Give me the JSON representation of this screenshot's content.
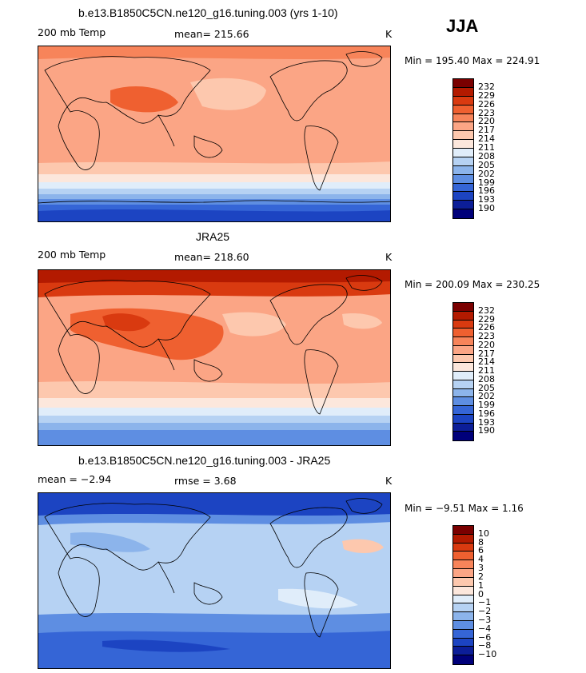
{
  "season": "JJA",
  "panels": [
    {
      "title": "b.e13.B1850C5CN.ne120_g16.tuning.003 (yrs 1-10)",
      "left_label": "200 mb Temp",
      "center_label": "mean= 215.66",
      "unit": "K",
      "minmax": "Min = 195.40 Max = 224.91",
      "colorbar_labels": [
        "232",
        "229",
        "226",
        "223",
        "220",
        "217",
        "214",
        "211",
        "208",
        "205",
        "202",
        "199",
        "196",
        "193",
        "190"
      ]
    },
    {
      "title": "JRA25",
      "left_label": "200 mb Temp",
      "center_label": "mean= 218.60",
      "unit": "K",
      "minmax": "Min = 200.09 Max = 230.25",
      "colorbar_labels": [
        "232",
        "229",
        "226",
        "223",
        "220",
        "217",
        "214",
        "211",
        "208",
        "205",
        "202",
        "199",
        "196",
        "193",
        "190"
      ]
    },
    {
      "title": "b.e13.B1850C5CN.ne120_g16.tuning.003 - JRA25",
      "left_label": "mean =   −2.94",
      "center_label": "rmse =    3.68",
      "unit": "K",
      "minmax": "Min =   −9.51 Max =    1.16",
      "colorbar_labels": [
        "10",
        "8",
        "6",
        "4",
        "3",
        "2",
        "1",
        "0",
        "−1",
        "−2",
        "−3",
        "−4",
        "−6",
        "−8",
        "−10"
      ]
    }
  ],
  "colors": {
    "scale": [
      "#7a0000",
      "#b31a00",
      "#d93a10",
      "#ef6030",
      "#f7845a",
      "#fba585",
      "#fdc8ae",
      "#fce7dc",
      "#e0edfa",
      "#b6d2f3",
      "#8cb4eb",
      "#5e8ee2",
      "#3565d6",
      "#1c44c2",
      "#0c1e98",
      "#00007a"
    ]
  }
}
